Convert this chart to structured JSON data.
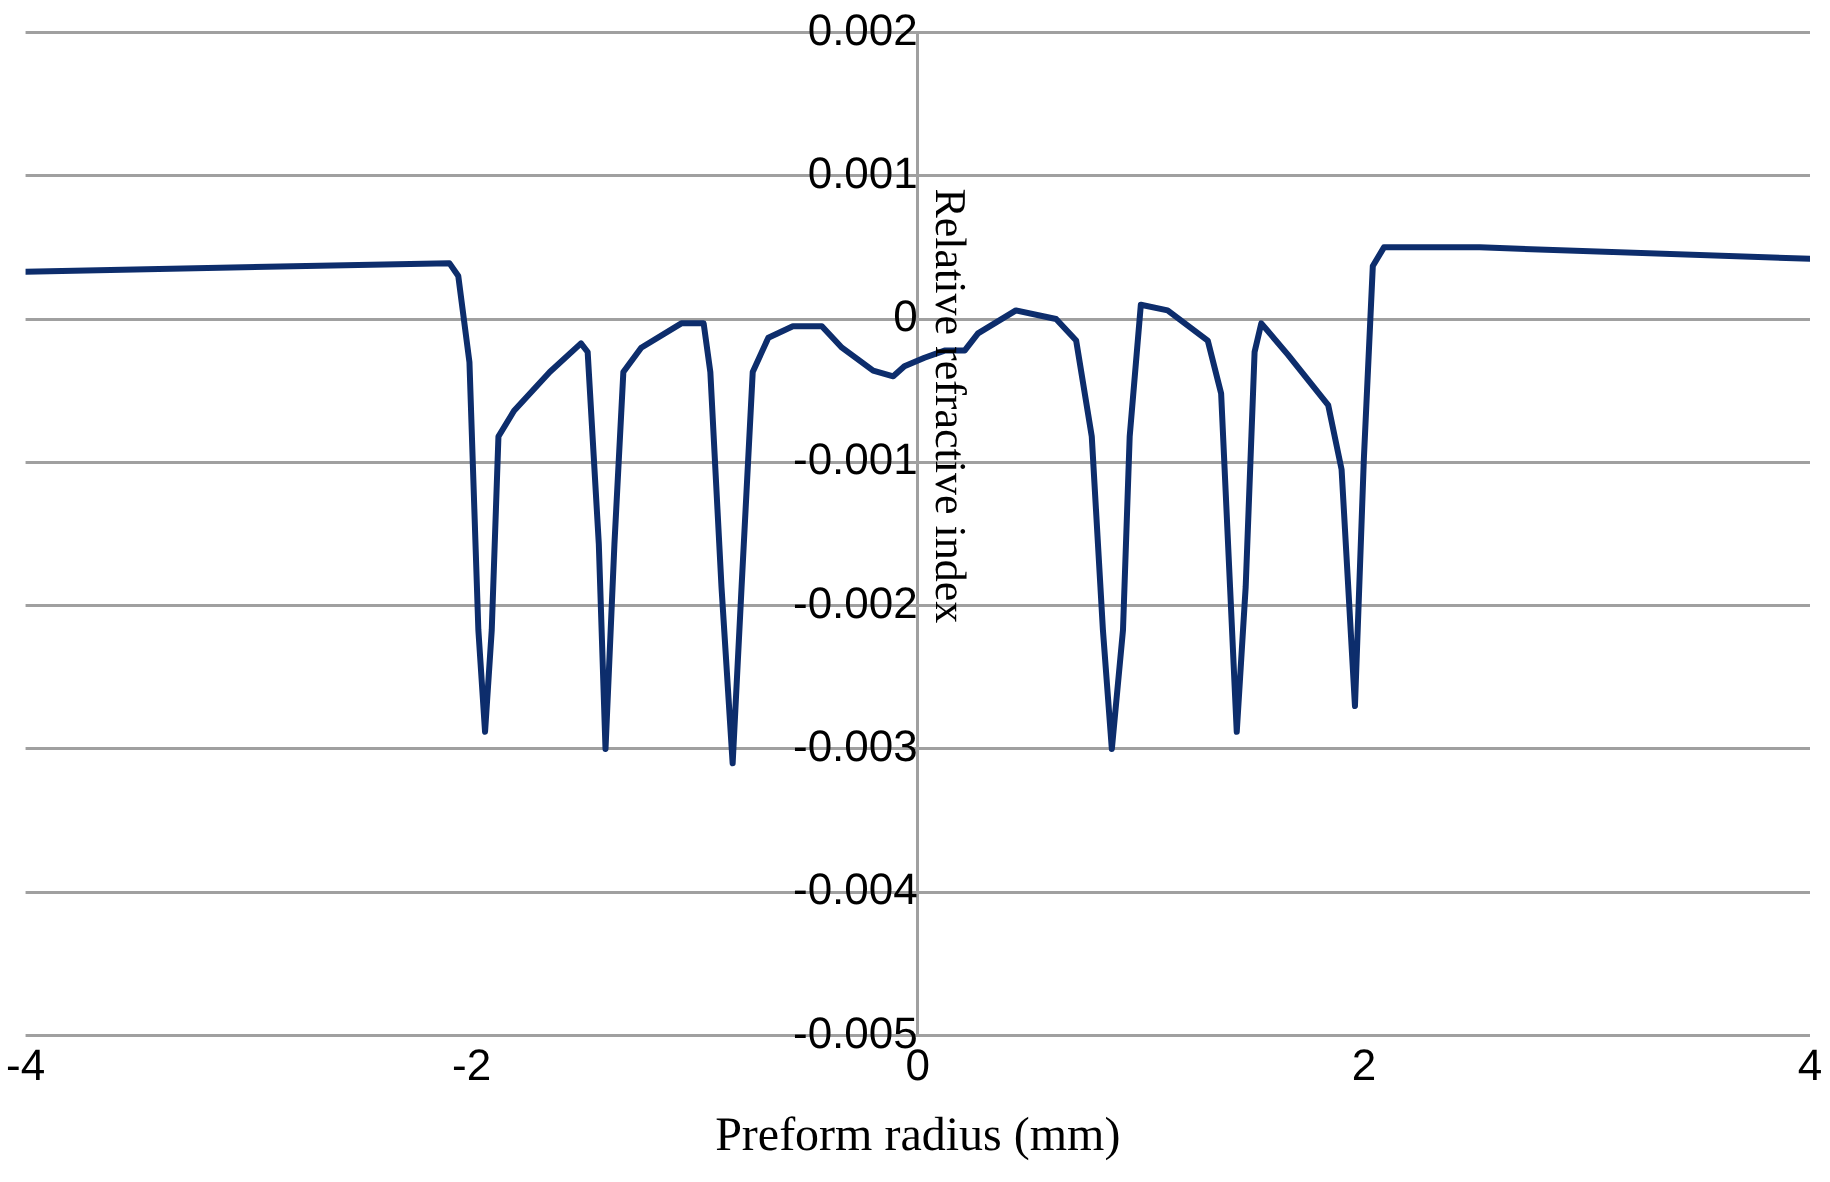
{
  "chart_data": {
    "type": "line",
    "xlabel": "Preform radius (mm)",
    "ylabel": "Relative refractive index",
    "x": [
      -4,
      -2.1,
      -2.06,
      -2.01,
      -1.97,
      -1.94,
      -1.91,
      -1.88,
      -1.81,
      -1.65,
      -1.51,
      -1.48,
      -1.43,
      -1.4,
      -1.36,
      -1.32,
      -1.24,
      -1.06,
      -0.96,
      -0.93,
      -0.88,
      -0.83,
      -0.79,
      -0.74,
      -0.67,
      -0.56,
      -0.43,
      -0.34,
      -0.2,
      -0.11,
      -0.06,
      0.03,
      0.12,
      0.21,
      0.27,
      0.44,
      0.62,
      0.71,
      0.78,
      0.83,
      0.87,
      0.92,
      0.95,
      1.0,
      1.12,
      1.3,
      1.36,
      1.4,
      1.43,
      1.47,
      1.51,
      1.54,
      1.66,
      1.84,
      1.9,
      1.96,
      2.0,
      2.04,
      2.09,
      2.52,
      4
    ],
    "series": [
      {
        "color": "#0d2d6c",
        "values": [
          0.00033,
          0.00039,
          0.0003,
          -0.0003,
          -0.00217,
          -0.00288,
          -0.00217,
          -0.00082,
          -0.00064,
          -0.00037,
          -0.00017,
          -0.00023,
          -0.00157,
          -0.003,
          -0.00157,
          -0.00037,
          -0.0002,
          -3e-05,
          -3e-05,
          -0.00037,
          -0.00187,
          -0.0031,
          -0.00187,
          -0.00037,
          -0.00013,
          -5e-05,
          -5e-05,
          -0.0002,
          -0.00036,
          -0.0004,
          -0.00033,
          -0.00027,
          -0.00022,
          -0.00022,
          -0.0001,
          6e-05,
          0,
          -0.00015,
          -0.00082,
          -0.00217,
          -0.003,
          -0.00217,
          -0.00082,
          0.0001,
          6e-05,
          -0.00015,
          -0.00052,
          -0.00187,
          -0.00288,
          -0.00187,
          -0.00023,
          -3e-05,
          -0.00025,
          -0.0006,
          -0.00105,
          -0.0027,
          -0.00097,
          0.00037,
          0.0005,
          0.0005,
          0.00042
        ]
      }
    ],
    "xlim": [
      -4,
      4
    ],
    "xticks": [
      -4,
      -2,
      0,
      2,
      4
    ],
    "ylim": [
      -0.005,
      0.002
    ],
    "yticks": [
      -0.005,
      -0.004,
      -0.003,
      -0.002,
      -0.001,
      0,
      0.001,
      0.002
    ],
    "grid": "y",
    "legend": false,
    "marker": "none",
    "line_style": "solid"
  }
}
